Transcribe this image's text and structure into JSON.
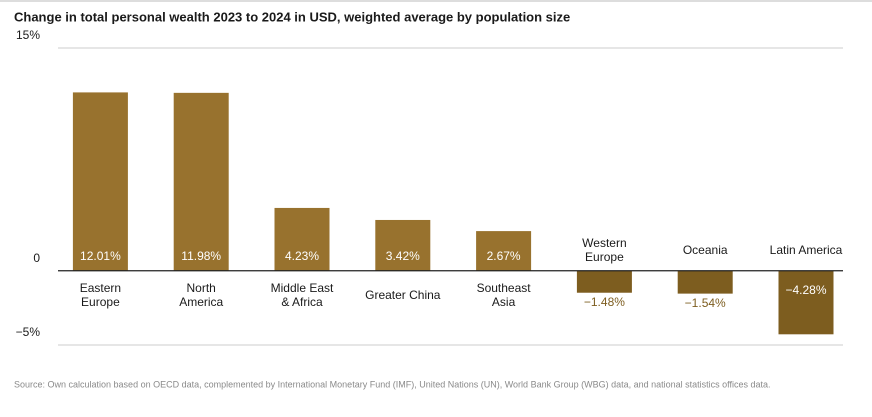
{
  "chart_data": {
    "type": "bar",
    "title": "Change in total personal wealth 2023 to 2024 in USD, weighted average by population size",
    "categories": [
      "Eastern\nEurope",
      "North\nAmerica",
      "Middle East\n& Africa",
      "Greater China",
      "Southeast\nAsia",
      "Western\nEurope",
      "Oceania",
      "Latin America"
    ],
    "values": [
      12.01,
      11.98,
      4.23,
      3.42,
      2.67,
      -1.48,
      -1.54,
      -4.28
    ],
    "value_labels": [
      "12.01%",
      "11.98%",
      "4.23%",
      "3.42%",
      "2.67%",
      "−1.48%",
      "−1.54%",
      "−4.28%"
    ],
    "color": "#98722e",
    "negative_color": "#7d5d1f",
    "ylim": [
      -5,
      15
    ],
    "yticks": [
      {
        "value": -5,
        "label": "−5%"
      },
      0,
      {
        "value": 15,
        "label": "15%"
      }
    ],
    "grid": true,
    "source": "Source: Own calculation based on OECD data, complemented by International Monetary Fund (IMF), United Nations (UN), World Bank Group (WBG) data, and national statistics offices data."
  }
}
